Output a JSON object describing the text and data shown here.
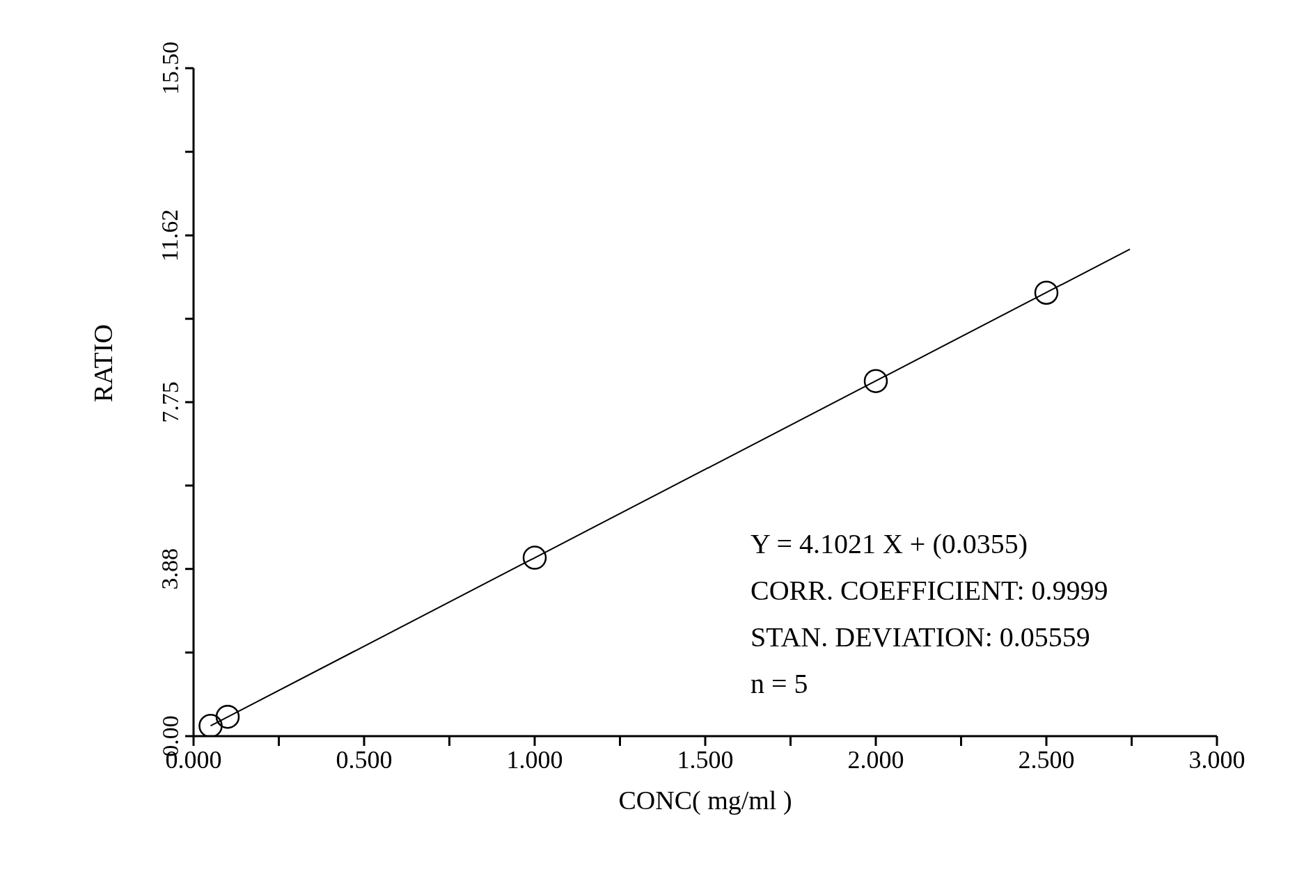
{
  "chart_data": {
    "type": "scatter",
    "xlabel": "CONC( mg/ml )",
    "ylabel": "RATIO",
    "series": [
      {
        "color": "#000000",
        "marker": "circle",
        "x": [
          0.05,
          0.1,
          1.0,
          2.0,
          2.5
        ],
        "values": [
          0.24,
          0.45,
          4.14,
          8.24,
          10.29
        ]
      },
      {
        "type": "line",
        "color": "#000000",
        "marker": "none",
        "x": [
          0.05,
          2.745
        ],
        "values": [
          0.24,
          11.3
        ]
      }
    ],
    "xlim": [
      0,
      3
    ],
    "xticks": [
      {
        "value": 0,
        "label": "0.000"
      },
      {
        "value": 0.25,
        "label": null
      },
      {
        "value": 0.5,
        "label": "0.500"
      },
      {
        "value": 0.75,
        "label": null
      },
      {
        "value": 1,
        "label": "1.000"
      },
      {
        "value": 1.25,
        "label": null
      },
      {
        "value": 1.5,
        "label": "1.500"
      },
      {
        "value": 1.75,
        "label": null
      },
      {
        "value": 2,
        "label": "2.000"
      },
      {
        "value": 2.25,
        "label": null
      },
      {
        "value": 2.5,
        "label": "2.500"
      },
      {
        "value": 2.75,
        "label": null
      },
      {
        "value": 3,
        "label": "3.000"
      }
    ],
    "ylim": [
      0,
      15.5
    ],
    "yticks": [
      {
        "value": 0,
        "label": "0.00"
      },
      {
        "value": 1.94,
        "label": null
      },
      {
        "value": 3.88,
        "label": "3.88"
      },
      {
        "value": 5.815,
        "label": null
      },
      {
        "value": 7.75,
        "label": "7.75"
      },
      {
        "value": 9.685,
        "label": null
      },
      {
        "value": 11.62,
        "label": "11.62"
      },
      {
        "value": 13.56,
        "label": null
      },
      {
        "value": 15.5,
        "label": "15.50"
      }
    ],
    "annotations": [
      "Y = 4.1021 X + (0.0355)",
      "CORR. COEFFICIENT: 0.9999",
      "STAN. DEVIATION: 0.05559",
      "n = 5"
    ],
    "grid": false,
    "legend": false
  }
}
